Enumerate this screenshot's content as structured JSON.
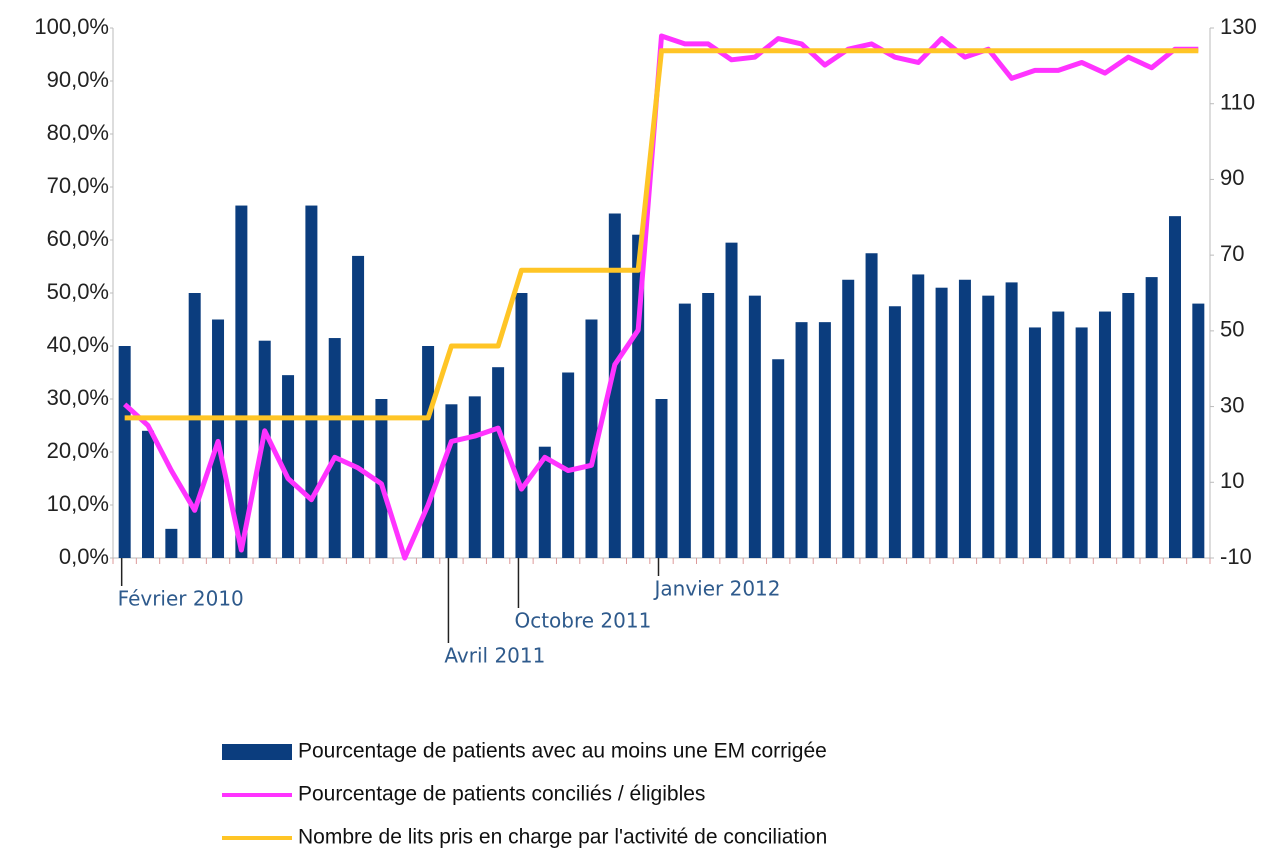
{
  "chart_data": {
    "type": "bar_line",
    "categories": [
      "Février 2010",
      null,
      null,
      null,
      null,
      null,
      null,
      null,
      null,
      null,
      null,
      null,
      null,
      null,
      "Avril 2011",
      null,
      null,
      "Octobre 2011",
      null,
      null,
      null,
      null,
      null,
      "Janvier 2012",
      null,
      null,
      null,
      null,
      null,
      null,
      null,
      null,
      null,
      null,
      null,
      null,
      null,
      null,
      null,
      null,
      null,
      null,
      null,
      null,
      null,
      null,
      null
    ],
    "series": [
      {
        "name": "Pourcentage de patients avec au moins une EM corrigée",
        "color": "#0b3d7e",
        "kind": "bar",
        "values": [
          40,
          24,
          5.5,
          50,
          45,
          66.5,
          41,
          34.5,
          66.5,
          41.5,
          57,
          30,
          0,
          40,
          29,
          30.5,
          36,
          50,
          21,
          35,
          45,
          65,
          61,
          30,
          48,
          50,
          59.5,
          49.5,
          37.5,
          44.5,
          44.5,
          52.5,
          57.5,
          47.5,
          53.5,
          51,
          52.5,
          49.5,
          52,
          43.5,
          46.5,
          43.5,
          46.5,
          50,
          53,
          64.5,
          48
        ]
      },
      {
        "name": "Pourcentage de patients conciliés / éligibles",
        "color": "#ff33ff",
        "kind": "line",
        "values": [
          29,
          25,
          16.5,
          9,
          22,
          1.5,
          24,
          15,
          11,
          19,
          17,
          14,
          0,
          10,
          22,
          23,
          24.5,
          13,
          19,
          16.5,
          17.5,
          36.5,
          43,
          98.5,
          97,
          97,
          94,
          94.5,
          98,
          97,
          93,
          96,
          97,
          94.5,
          93.5,
          98,
          94.5,
          96,
          90.5,
          92,
          92,
          93.5,
          91.5,
          94.5,
          92.5,
          96,
          96
        ]
      },
      {
        "name": "Nombre de lits pris en charge par l'activité de conciliation",
        "color": "#ffc526",
        "kind": "line",
        "axis": "y2",
        "values": [
          27,
          27,
          27,
          27,
          27,
          27,
          27,
          27,
          27,
          27,
          27,
          27,
          27,
          27,
          46,
          46,
          46,
          66,
          66,
          66,
          66,
          66,
          66,
          124,
          124,
          124,
          124,
          124,
          124,
          124,
          124,
          124,
          124,
          124,
          124,
          124,
          124,
          124,
          124,
          124,
          124,
          124,
          124,
          124,
          124,
          124,
          124
        ]
      }
    ],
    "ylim": [
      0,
      100
    ],
    "yticks": [
      {
        "value": 0,
        "label": "0,0%"
      },
      {
        "value": 10,
        "label": "10,0%"
      },
      {
        "value": 20,
        "label": "20,0%"
      },
      {
        "value": 30,
        "label": "30,0%"
      },
      {
        "value": 40,
        "label": "40,0%"
      },
      {
        "value": 50,
        "label": "50,0%"
      },
      {
        "value": 60,
        "label": "60,0%"
      },
      {
        "value": 70,
        "label": "70,0%"
      },
      {
        "value": 80,
        "label": "80,0%"
      },
      {
        "value": 90,
        "label": "90,0%"
      },
      {
        "value": 100,
        "label": "100,0%"
      }
    ],
    "y2lim": [
      -10,
      130
    ],
    "y2ticks": [
      -10,
      10,
      30,
      50,
      70,
      90,
      110,
      130
    ]
  }
}
